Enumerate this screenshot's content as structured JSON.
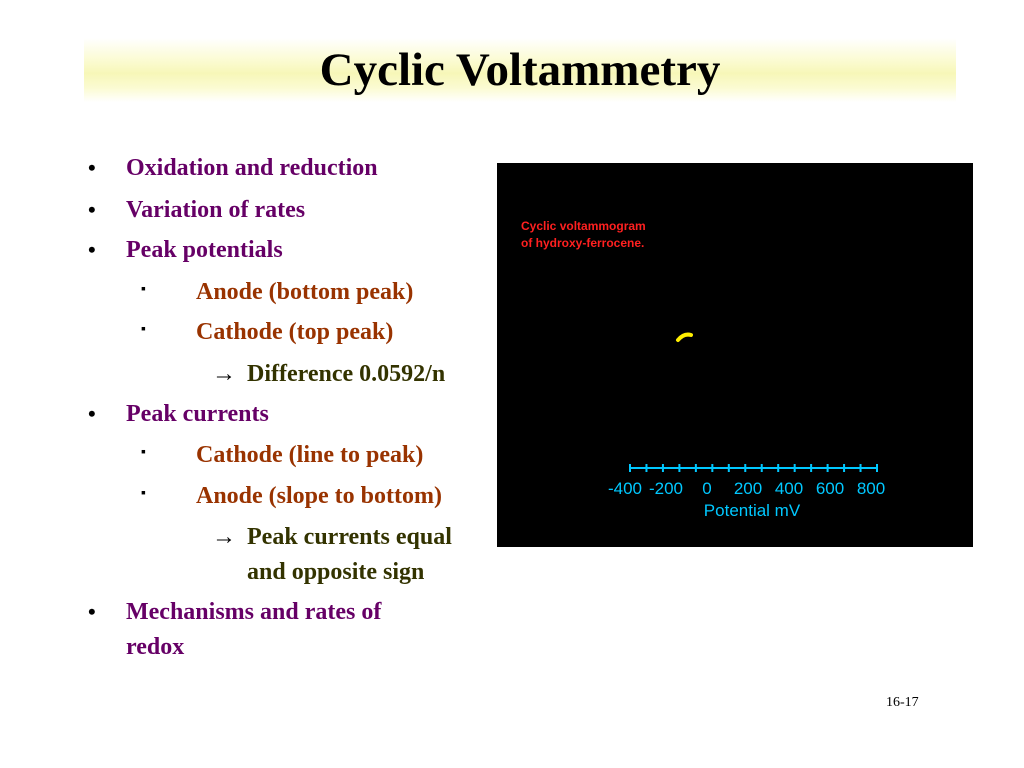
{
  "slide": {
    "title": "Cyclic Voltammetry",
    "slide_number": "16-17"
  },
  "bullets": [
    {
      "level": 1,
      "marker": "•",
      "text": "Oxidation and reduction"
    },
    {
      "level": 1,
      "marker": "•",
      "text": "Variation of rates"
    },
    {
      "level": 1,
      "marker": "•",
      "text": "Peak potentials"
    },
    {
      "level": 2,
      "marker": "▪",
      "text": "Anode (bottom peak)"
    },
    {
      "level": 2,
      "marker": "▪",
      "text": "Cathode (top peak)"
    },
    {
      "level": 3,
      "marker": "→",
      "text": "Difference 0.0592/n"
    },
    {
      "level": 1,
      "marker": "•",
      "text": "Peak currents"
    },
    {
      "level": 2,
      "marker": "▪",
      "text": "Cathode (line to peak)"
    },
    {
      "level": 2,
      "marker": "▪",
      "text": "Anode (slope to bottom)"
    },
    {
      "level": 3,
      "marker": "→",
      "text": "Peak currents equal"
    },
    {
      "level": 3,
      "marker": "",
      "text": "and opposite sign"
    },
    {
      "level": 1,
      "marker": "•",
      "text": "Mechanisms and rates of"
    },
    {
      "level": 1,
      "marker": "",
      "text": "redox"
    }
  ],
  "chart_data": {
    "type": "line",
    "caption_lines": [
      "Cyclic voltammogram",
      "of hydroxy-ferrocene."
    ],
    "xlabel": "Potential mV",
    "x_ticks": [
      "-400",
      "-200",
      "0",
      "200",
      "400",
      "600",
      "800"
    ],
    "colors": {
      "background": "#000000",
      "caption": "#ff2020",
      "axis": "#00c8ff",
      "trace": "#ffee00"
    }
  }
}
